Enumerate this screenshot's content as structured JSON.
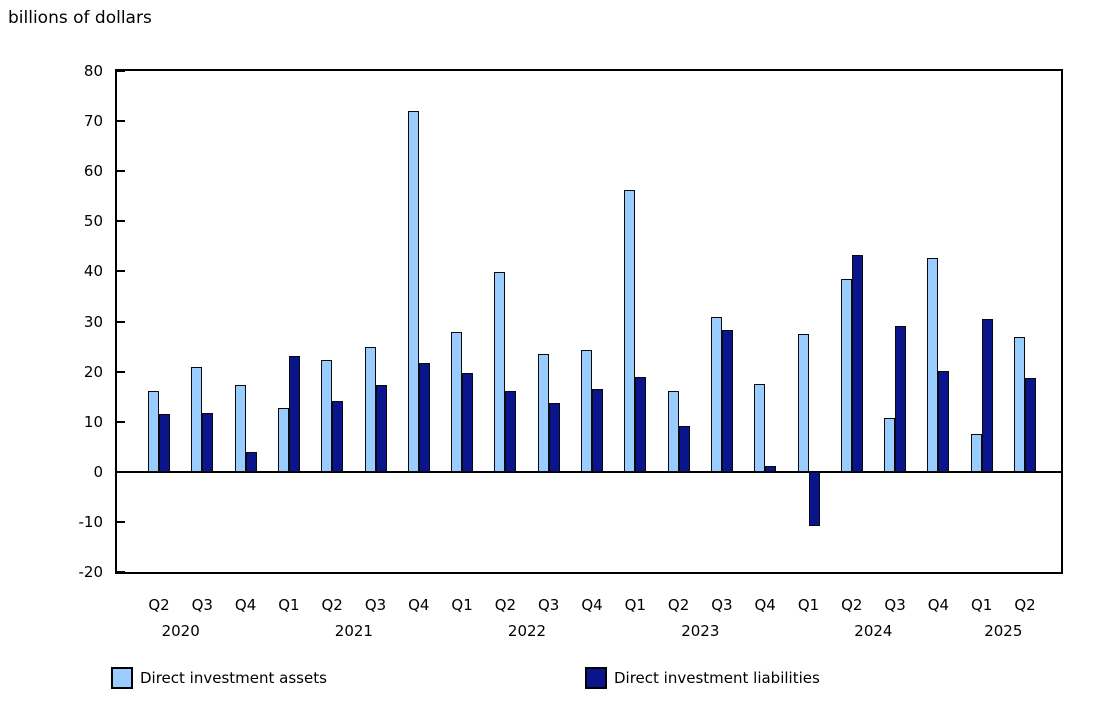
{
  "title": "billions of dollars",
  "chart_data": {
    "type": "bar",
    "title": "billions of dollars",
    "ylabel": "billions of dollars",
    "xlabel": "",
    "ylim": [
      -20,
      80
    ],
    "yticks": [
      80,
      70,
      60,
      50,
      40,
      30,
      20,
      10,
      0,
      -10,
      -20
    ],
    "grid": false,
    "legend_position": "bottom",
    "categories": [
      "Q2",
      "Q3",
      "Q4",
      "Q1",
      "Q2",
      "Q3",
      "Q4",
      "Q1",
      "Q2",
      "Q3",
      "Q4",
      "Q1",
      "Q2",
      "Q3",
      "Q4",
      "Q1",
      "Q2",
      "Q3",
      "Q4",
      "Q1",
      "Q2"
    ],
    "year_labels": [
      {
        "label": "2020",
        "between": [
          0,
          1
        ]
      },
      {
        "label": "2021",
        "between": [
          4,
          5
        ]
      },
      {
        "label": "2022",
        "between": [
          8,
          9
        ]
      },
      {
        "label": "2023",
        "between": [
          12,
          13
        ]
      },
      {
        "label": "2024",
        "between": [
          16,
          17
        ]
      },
      {
        "label": "2025",
        "between": [
          19,
          20
        ]
      }
    ],
    "series": [
      {
        "name": "Direct investment assets",
        "color": "#99ccff",
        "values": [
          16.2,
          20.9,
          17.4,
          12.7,
          22.4,
          25.0,
          72.0,
          28.0,
          39.9,
          23.6,
          24.4,
          56.2,
          16.2,
          31.0,
          17.5,
          27.6,
          38.5,
          10.8,
          42.7,
          7.6,
          27.0
        ]
      },
      {
        "name": "Direct investment liabilities",
        "color": "#0a148c",
        "values": [
          11.5,
          11.8,
          4.0,
          23.2,
          14.1,
          17.4,
          21.7,
          19.7,
          16.1,
          13.7,
          16.5,
          19.0,
          9.1,
          28.4,
          1.1,
          -10.8,
          43.2,
          29.2,
          20.1,
          30.5,
          18.7
        ]
      }
    ]
  }
}
